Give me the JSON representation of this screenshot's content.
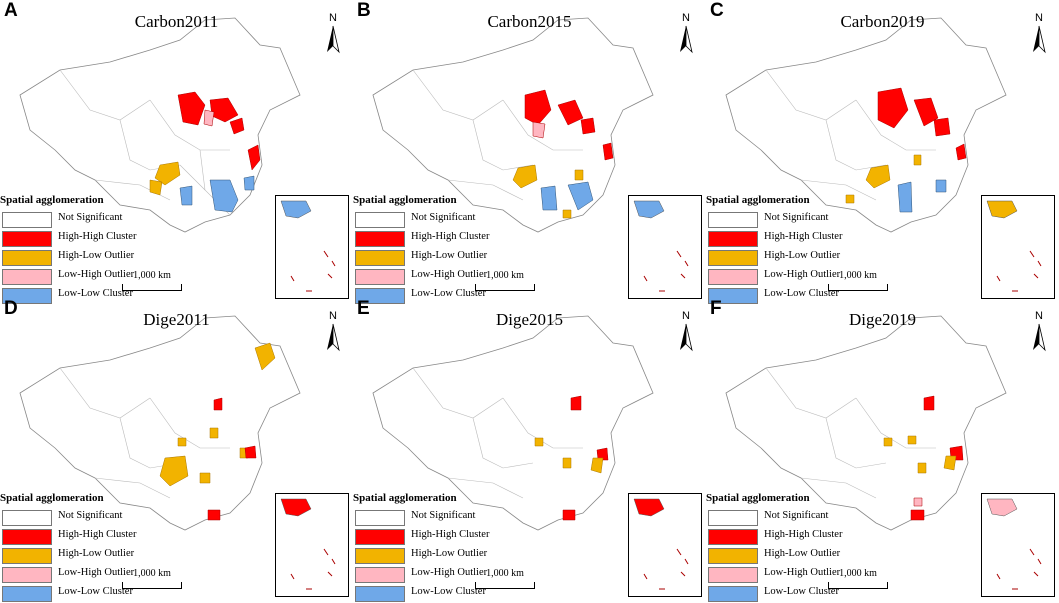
{
  "legend": {
    "title": "Spatial agglomeration",
    "items": [
      {
        "label": "Not Significant",
        "color": "#ffffff"
      },
      {
        "label": "High-High Cluster",
        "color": "#ff0000"
      },
      {
        "label": "High-Low Outlier",
        "color": "#f2b300"
      },
      {
        "label": "Low-High Outlier",
        "color": "#ffb6c1"
      },
      {
        "label": "Low-Low Cluster",
        "color": "#6fa8e8"
      }
    ]
  },
  "scale_label": "1,000 km",
  "north_label": "N",
  "panels": [
    {
      "letter": "A",
      "title": "Carbon2011"
    },
    {
      "letter": "B",
      "title": "Carbon2015"
    },
    {
      "letter": "C",
      "title": "Carbon2019"
    },
    {
      "letter": "D",
      "title": "Dige2011"
    },
    {
      "letter": "E",
      "title": "Dige2015"
    },
    {
      "letter": "F",
      "title": "Dige2019"
    }
  ]
}
